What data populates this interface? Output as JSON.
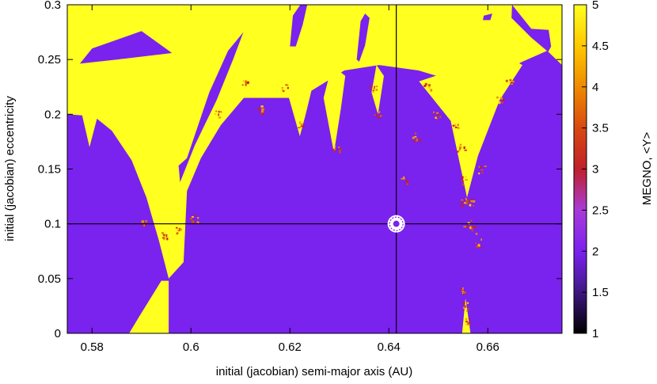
{
  "chart_data": {
    "type": "heatmap",
    "title": "",
    "xlabel": "initial (jacobian) semi-major axis (AU)",
    "ylabel": "initial (jacobian) eccentricity",
    "xlim": [
      0.575,
      0.675
    ],
    "ylim": [
      0,
      0.3
    ],
    "x_ticks": [
      "0.58",
      "0.6",
      "0.62",
      "0.64",
      "0.66"
    ],
    "y_ticks": [
      "0",
      "0.05",
      "0.1",
      "0.15",
      "0.2",
      "0.25",
      "0.3"
    ],
    "colorbar": {
      "label": "MEGNO, <Y>",
      "range": [
        1,
        5
      ],
      "ticks": [
        "1",
        "1.5",
        "2",
        "2.5",
        "3",
        "3.5",
        "4",
        "4.5",
        "5"
      ],
      "stops": [
        {
          "value": 1.0,
          "color": "#000000"
        },
        {
          "value": 1.6,
          "color": "#4a1a9a"
        },
        {
          "value": 2.0,
          "color": "#7a22ee"
        },
        {
          "value": 2.5,
          "color": "#a83bd8"
        },
        {
          "value": 3.0,
          "color": "#c0202a"
        },
        {
          "value": 3.5,
          "color": "#d84a10"
        },
        {
          "value": 4.0,
          "color": "#ee8a00"
        },
        {
          "value": 4.5,
          "color": "#ffc800"
        },
        {
          "value": 5.0,
          "color": "#ffff20"
        }
      ]
    },
    "regular_value": 1.95,
    "chaotic_value": 5,
    "chaotic_regions": [
      [
        [
          0.575,
          0.232
        ],
        [
          0.58,
          0.26
        ],
        [
          0.59,
          0.276
        ],
        [
          0.598,
          0.25
        ],
        [
          0.61,
          0.215
        ],
        [
          0.622,
          0.215
        ],
        [
          0.631,
          0.24
        ],
        [
          0.638,
          0.245
        ],
        [
          0.646,
          0.24
        ],
        [
          0.657,
          0.225
        ],
        [
          0.667,
          0.248
        ],
        [
          0.672,
          0.258
        ],
        [
          0.675,
          0.245
        ],
        [
          0.675,
          0.3
        ],
        [
          0.575,
          0.3
        ]
      ],
      [
        [
          0.575,
          0.2
        ],
        [
          0.578,
          0.199
        ],
        [
          0.5795,
          0.17
        ],
        [
          0.581,
          0.196
        ],
        [
          0.584,
          0.185
        ],
        [
          0.588,
          0.158
        ],
        [
          0.591,
          0.124
        ],
        [
          0.5935,
          0.085
        ],
        [
          0.5955,
          0.05
        ],
        [
          0.5985,
          0.065
        ],
        [
          0.5992,
          0.13
        ],
        [
          0.602,
          0.16
        ],
        [
          0.606,
          0.19
        ],
        [
          0.612,
          0.222
        ],
        [
          0.61,
          0.25
        ],
        [
          0.6,
          0.258
        ],
        [
          0.585,
          0.25
        ],
        [
          0.575,
          0.245
        ]
      ],
      [
        [
          0.5895,
          0.015
        ],
        [
          0.594,
          0.048
        ],
        [
          0.5955,
          0.048
        ],
        [
          0.5955,
          0.0
        ],
        [
          0.5875,
          0.0
        ]
      ],
      [
        [
          0.6198,
          0.215
        ],
        [
          0.622,
          0.18
        ],
        [
          0.6232,
          0.2
        ],
        [
          0.6248,
          0.23
        ],
        [
          0.623,
          0.24
        ]
      ],
      [
        [
          0.6268,
          0.215
        ],
        [
          0.6289,
          0.165
        ],
        [
          0.6303,
          0.205
        ],
        [
          0.6312,
          0.235
        ],
        [
          0.6285,
          0.245
        ]
      ],
      [
        [
          0.6365,
          0.22
        ],
        [
          0.6378,
          0.2
        ],
        [
          0.639,
          0.235
        ],
        [
          0.6375,
          0.245
        ]
      ],
      [
        [
          0.6461,
          0.23
        ],
        [
          0.6525,
          0.194
        ],
        [
          0.6558,
          0.124
        ],
        [
          0.658,
          0.162
        ],
        [
          0.6624,
          0.213
        ],
        [
          0.667,
          0.245
        ],
        [
          0.664,
          0.252
        ],
        [
          0.656,
          0.245
        ]
      ],
      [
        [
          0.6548,
          0.0
        ],
        [
          0.6555,
          0.032
        ],
        [
          0.6562,
          0.01
        ],
        [
          0.6565,
          0.0
        ]
      ]
    ],
    "regular_islands": [
      [
        [
          0.5975,
          0.153
        ],
        [
          0.5992,
          0.16
        ],
        [
          0.6037,
          0.22
        ],
        [
          0.6075,
          0.258
        ],
        [
          0.6106,
          0.275
        ],
        [
          0.6085,
          0.25
        ],
        [
          0.6052,
          0.213
        ],
        [
          0.6008,
          0.172
        ],
        [
          0.5978,
          0.138
        ]
      ],
      [
        [
          0.62,
          0.262
        ],
        [
          0.6206,
          0.29
        ],
        [
          0.6221,
          0.3
        ],
        [
          0.6235,
          0.3
        ],
        [
          0.6226,
          0.282
        ],
        [
          0.6212,
          0.262
        ]
      ],
      [
        [
          0.6335,
          0.25
        ],
        [
          0.6343,
          0.285
        ],
        [
          0.6352,
          0.292
        ],
        [
          0.6361,
          0.288
        ],
        [
          0.6352,
          0.263
        ],
        [
          0.634,
          0.248
        ]
      ],
      [
        [
          0.6592,
          0.29
        ],
        [
          0.6609,
          0.292
        ],
        [
          0.6605,
          0.286
        ],
        [
          0.659,
          0.286
        ]
      ],
      [
        [
          0.6649,
          0.3
        ],
        [
          0.6688,
          0.278
        ],
        [
          0.6723,
          0.277
        ],
        [
          0.6728,
          0.262
        ],
        [
          0.6722,
          0.257
        ],
        [
          0.6688,
          0.27
        ],
        [
          0.6648,
          0.288
        ]
      ]
    ],
    "transition_points": [
      [
        0.5905,
        0.1
      ],
      [
        0.5975,
        0.095
      ],
      [
        0.6005,
        0.105
      ],
      [
        0.5948,
        0.09
      ],
      [
        0.6055,
        0.2
      ],
      [
        0.611,
        0.23
      ],
      [
        0.6142,
        0.205
      ],
      [
        0.6188,
        0.225
      ],
      [
        0.6222,
        0.19
      ],
      [
        0.6293,
        0.17
      ],
      [
        0.6368,
        0.225
      ],
      [
        0.6378,
        0.2
      ],
      [
        0.6478,
        0.225
      ],
      [
        0.6496,
        0.2
      ],
      [
        0.6535,
        0.19
      ],
      [
        0.6545,
        0.17
      ],
      [
        0.6552,
        0.14
      ],
      [
        0.6562,
        0.12
      ],
      [
        0.6558,
        0.1
      ],
      [
        0.657,
        0.095
      ],
      [
        0.6578,
        0.083
      ],
      [
        0.6552,
        0.12
      ],
      [
        0.6585,
        0.15
      ],
      [
        0.6625,
        0.215
      ],
      [
        0.6642,
        0.23
      ],
      [
        0.6553,
        0.025
      ],
      [
        0.6559,
        0.012
      ],
      [
        0.6548,
        0.04
      ],
      [
        0.643,
        0.14
      ],
      [
        0.6455,
        0.18
      ]
    ],
    "crosshair": {
      "x": 0.6415,
      "y": 0.1
    }
  }
}
